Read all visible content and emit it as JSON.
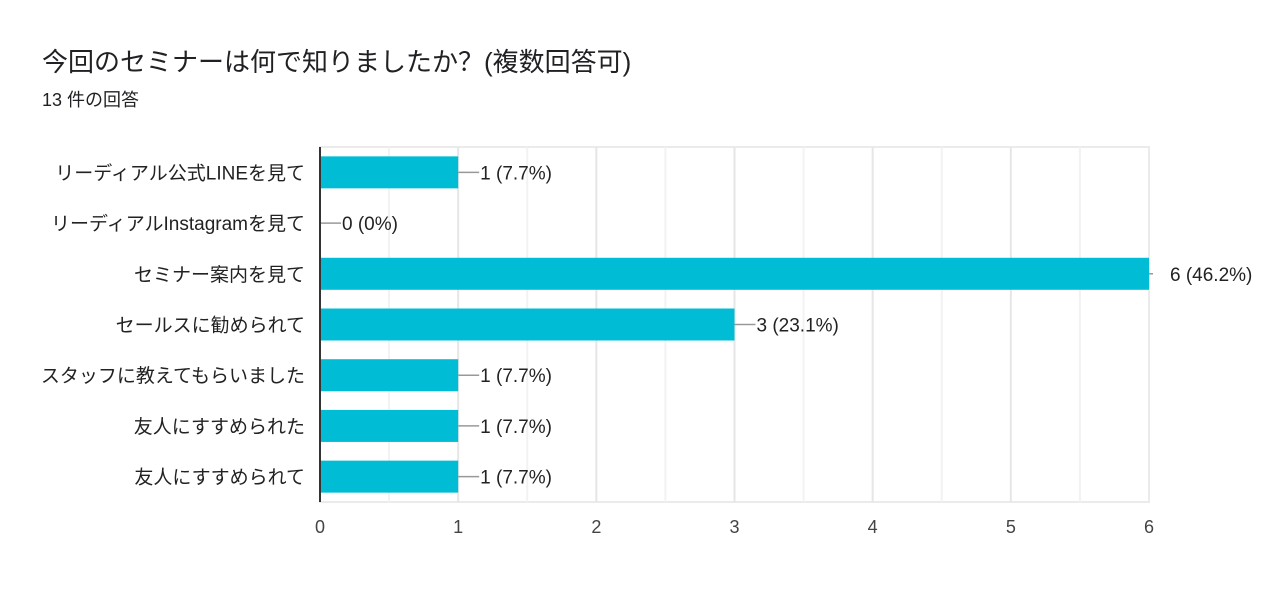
{
  "header": {
    "title": "今回のセミナーは何で知りましたか？(複数回答可)",
    "response_count": "13 件の回答"
  },
  "chart_data": {
    "type": "bar",
    "orientation": "horizontal",
    "title": "今回のセミナーは何で知りましたか？(複数回答可)",
    "categories": [
      "リーディアル公式LINEを見て",
      "リーディアルInstagramを見て",
      "セミナー案内を見て",
      "セールスに勧められて",
      "スタッフに教えてもらいました",
      "友人にすすめられた",
      "友人にすすめられて"
    ],
    "values": [
      1,
      0,
      6,
      3,
      1,
      1,
      1
    ],
    "data_labels": [
      "1 (7.7%)",
      "0 (0%)",
      "6 (46.2%)",
      "3 (23.1%)",
      "1 (7.7%)",
      "1 (7.7%)",
      "1 (7.7%)"
    ],
    "xlim": [
      0,
      6
    ],
    "xticks": [
      "0",
      "1",
      "2",
      "3",
      "4",
      "5",
      "6"
    ],
    "grid": true,
    "xlabel": "",
    "ylabel": "",
    "bar_color": "#00bcd4"
  }
}
